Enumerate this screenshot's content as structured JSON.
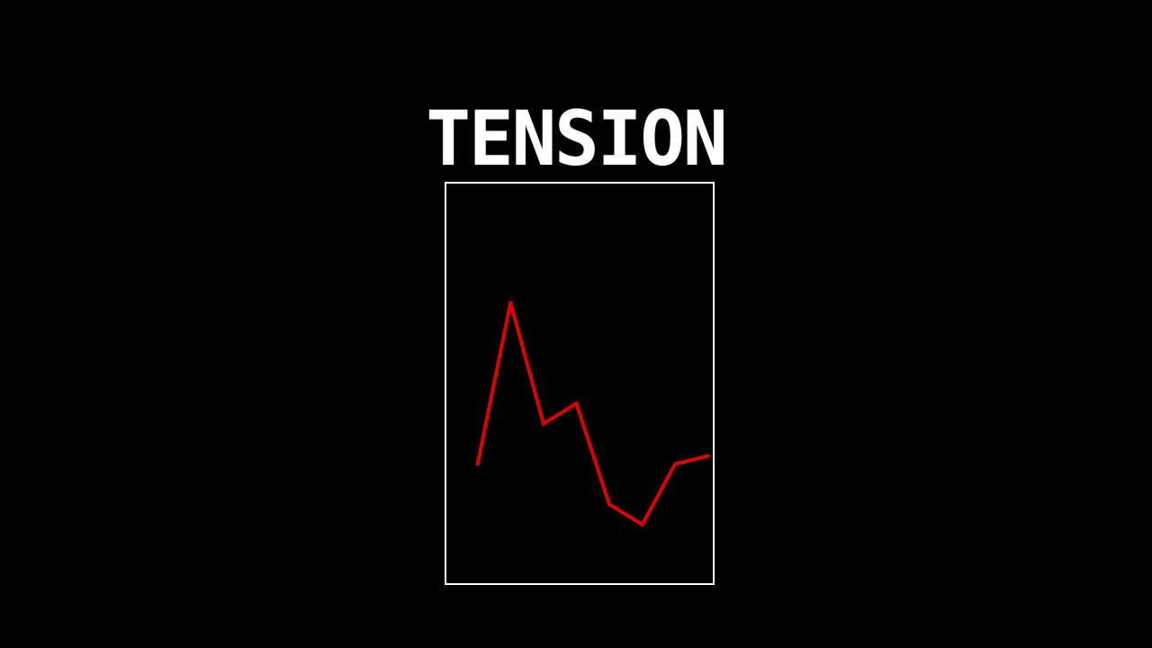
{
  "title": "TENSION",
  "colors": {
    "background": "#000000",
    "text": "#ffffff",
    "frame": "#ffffff",
    "line": "#e00000"
  },
  "chart_data": {
    "type": "line",
    "x": [
      0,
      1,
      2,
      3,
      4,
      5,
      6,
      7
    ],
    "values": [
      30,
      70,
      40,
      45,
      20,
      15,
      30,
      32
    ],
    "ylim": [
      0,
      100
    ],
    "xlim": [
      -1,
      7.2
    ]
  }
}
